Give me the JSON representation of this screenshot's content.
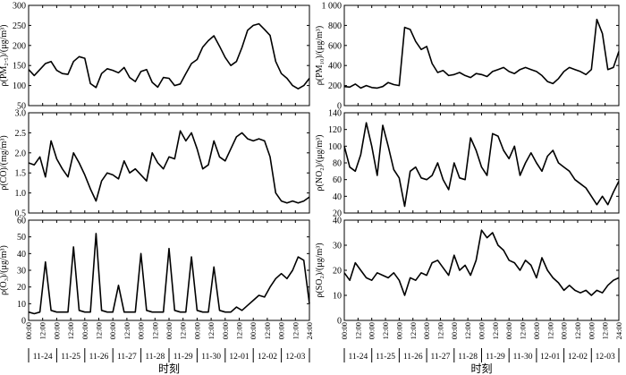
{
  "figure": {
    "xlabel_left": "时刻",
    "xlabel_right": "时刻",
    "time_ticks": [
      "00:00",
      "12:00",
      "00:00",
      "12:00",
      "00:00",
      "12:00",
      "00:00",
      "12:00",
      "00:00",
      "12:00",
      "00:00",
      "12:00",
      "00:00",
      "12:00",
      "00:00",
      "12:00",
      "00:00",
      "12:00",
      "00:00",
      "12:00",
      "24:00"
    ],
    "dates": [
      "11-24",
      "11-25",
      "11-26",
      "11-27",
      "11-28",
      "11-29",
      "11-30",
      "12-01",
      "12-02",
      "12-03"
    ]
  },
  "chart_data": [
    {
      "type": "line",
      "key": "pm25",
      "ylabel": "ρ(PM₂.₅)/(μg/m³)",
      "ylim": [
        50,
        300
      ],
      "yticks": [
        "50",
        "100",
        "150",
        "200",
        "250",
        "300"
      ],
      "x": [
        0,
        0.2,
        0.4,
        0.6,
        0.8,
        1.0,
        1.2,
        1.4,
        1.6,
        1.8,
        2.0,
        2.2,
        2.4,
        2.6,
        2.8,
        3.0,
        3.2,
        3.4,
        3.6,
        3.8,
        4.0,
        4.2,
        4.4,
        4.6,
        4.8,
        5.0,
        5.2,
        5.4,
        5.6,
        5.8,
        6.0,
        6.2,
        6.4,
        6.6,
        6.8,
        7.0,
        7.2,
        7.4,
        7.6,
        7.8,
        8.0,
        8.2,
        8.4,
        8.6,
        8.8,
        9.0,
        9.2,
        9.4,
        9.6,
        9.8,
        10.0
      ],
      "values": [
        140,
        125,
        140,
        155,
        160,
        138,
        130,
        128,
        160,
        172,
        168,
        105,
        95,
        130,
        142,
        138,
        132,
        145,
        120,
        110,
        135,
        140,
        108,
        96,
        120,
        118,
        100,
        104,
        130,
        155,
        165,
        196,
        212,
        224,
        198,
        170,
        150,
        160,
        195,
        238,
        250,
        254,
        240,
        225,
        160,
        130,
        118,
        100,
        92,
        100,
        118
      ]
    },
    {
      "type": "line",
      "key": "pm10",
      "ylabel": "ρ(PM₁₀)/(μg/m³)",
      "ylim": [
        0,
        1000
      ],
      "yticks": [
        "0",
        "200",
        "400",
        "600",
        "800",
        "1 000"
      ],
      "x": [
        0,
        0.2,
        0.4,
        0.6,
        0.8,
        1.0,
        1.2,
        1.4,
        1.6,
        1.8,
        2.0,
        2.2,
        2.4,
        2.6,
        2.8,
        3.0,
        3.2,
        3.4,
        3.6,
        3.8,
        4.0,
        4.2,
        4.4,
        4.6,
        4.8,
        5.0,
        5.2,
        5.4,
        5.6,
        5.8,
        6.0,
        6.2,
        6.4,
        6.6,
        6.8,
        7.0,
        7.2,
        7.4,
        7.6,
        7.8,
        8.0,
        8.2,
        8.4,
        8.6,
        8.8,
        9.0,
        9.2,
        9.4,
        9.6,
        9.8,
        10.0
      ],
      "values": [
        190,
        185,
        215,
        175,
        200,
        180,
        175,
        190,
        230,
        210,
        200,
        780,
        760,
        640,
        560,
        590,
        420,
        330,
        350,
        300,
        310,
        330,
        300,
        280,
        320,
        310,
        290,
        340,
        360,
        380,
        340,
        320,
        360,
        380,
        360,
        340,
        300,
        240,
        220,
        270,
        340,
        380,
        360,
        340,
        310,
        360,
        860,
        720,
        360,
        380,
        540
      ]
    },
    {
      "type": "line",
      "key": "co",
      "ylabel": "ρ(CO)/(mg/m³)",
      "ylim": [
        0.5,
        3.0
      ],
      "yticks": [
        "0.5",
        "1.0",
        "1.5",
        "2.0",
        "2.5",
        "3.0"
      ],
      "x": [
        0,
        0.2,
        0.4,
        0.6,
        0.8,
        1.0,
        1.2,
        1.4,
        1.6,
        1.8,
        2.0,
        2.2,
        2.4,
        2.6,
        2.8,
        3.0,
        3.2,
        3.4,
        3.6,
        3.8,
        4.0,
        4.2,
        4.4,
        4.6,
        4.8,
        5.0,
        5.2,
        5.4,
        5.6,
        5.8,
        6.0,
        6.2,
        6.4,
        6.6,
        6.8,
        7.0,
        7.2,
        7.4,
        7.6,
        7.8,
        8.0,
        8.2,
        8.4,
        8.6,
        8.8,
        9.0,
        9.2,
        9.4,
        9.6,
        9.8,
        10.0
      ],
      "values": [
        1.75,
        1.7,
        1.9,
        1.4,
        2.3,
        1.85,
        1.6,
        1.4,
        2.0,
        1.75,
        1.45,
        1.1,
        0.8,
        1.3,
        1.5,
        1.45,
        1.35,
        1.8,
        1.5,
        1.6,
        1.45,
        1.3,
        2.0,
        1.75,
        1.6,
        1.9,
        1.85,
        2.55,
        2.3,
        2.5,
        2.1,
        1.6,
        1.7,
        2.3,
        1.9,
        1.8,
        2.1,
        2.4,
        2.5,
        2.35,
        2.3,
        2.35,
        2.3,
        1.9,
        1.0,
        0.8,
        0.75,
        0.8,
        0.75,
        0.8,
        0.9
      ]
    },
    {
      "type": "line",
      "key": "no2",
      "ylabel": "ρ(NO₂)/(μg/m³)",
      "ylim": [
        20,
        140
      ],
      "yticks": [
        "20",
        "40",
        "60",
        "80",
        "100",
        "120",
        "140"
      ],
      "x": [
        0,
        0.2,
        0.4,
        0.6,
        0.8,
        1.0,
        1.2,
        1.4,
        1.6,
        1.8,
        2.0,
        2.2,
        2.4,
        2.6,
        2.8,
        3.0,
        3.2,
        3.4,
        3.6,
        3.8,
        4.0,
        4.2,
        4.4,
        4.6,
        4.8,
        5.0,
        5.2,
        5.4,
        5.6,
        5.8,
        6.0,
        6.2,
        6.4,
        6.6,
        6.8,
        7.0,
        7.2,
        7.4,
        7.6,
        7.8,
        8.0,
        8.2,
        8.4,
        8.6,
        8.8,
        9.0,
        9.2,
        9.4,
        9.6,
        9.8,
        10.0
      ],
      "values": [
        100,
        75,
        70,
        90,
        128,
        100,
        65,
        125,
        100,
        72,
        62,
        28,
        70,
        75,
        62,
        60,
        65,
        80,
        60,
        48,
        80,
        62,
        60,
        110,
        95,
        75,
        65,
        115,
        112,
        95,
        85,
        100,
        65,
        80,
        92,
        80,
        70,
        88,
        95,
        80,
        75,
        70,
        60,
        55,
        50,
        40,
        30,
        40,
        30,
        45,
        58
      ]
    },
    {
      "type": "line",
      "key": "o3",
      "ylabel": "ρ(O₃)/(μg/m³)",
      "ylim": [
        0,
        60
      ],
      "yticks": [
        "0",
        "10",
        "20",
        "30",
        "40",
        "50",
        "60"
      ],
      "x": [
        0,
        0.2,
        0.4,
        0.6,
        0.8,
        1.0,
        1.2,
        1.4,
        1.6,
        1.8,
        2.0,
        2.2,
        2.4,
        2.6,
        2.8,
        3.0,
        3.2,
        3.4,
        3.6,
        3.8,
        4.0,
        4.2,
        4.4,
        4.6,
        4.8,
        5.0,
        5.2,
        5.4,
        5.6,
        5.8,
        6.0,
        6.2,
        6.4,
        6.6,
        6.8,
        7.0,
        7.2,
        7.4,
        7.6,
        7.8,
        8.0,
        8.2,
        8.4,
        8.6,
        8.8,
        9.0,
        9.2,
        9.4,
        9.6,
        9.8,
        10.0
      ],
      "values": [
        5,
        4,
        5,
        35,
        6,
        5,
        5,
        5,
        44,
        6,
        5,
        5,
        52,
        6,
        5,
        5,
        21,
        5,
        5,
        5,
        40,
        6,
        5,
        5,
        5,
        43,
        6,
        5,
        5,
        38,
        6,
        5,
        5,
        32,
        6,
        5,
        5,
        8,
        6,
        9,
        12,
        15,
        14,
        20,
        25,
        28,
        25,
        30,
        38,
        36,
        10
      ]
    },
    {
      "type": "line",
      "key": "so2",
      "ylabel": "ρ(SO₂)/(μg/m³)",
      "ylim": [
        0,
        40
      ],
      "yticks": [
        "0",
        "10",
        "20",
        "30",
        "40"
      ],
      "x": [
        0,
        0.2,
        0.4,
        0.6,
        0.8,
        1.0,
        1.2,
        1.4,
        1.6,
        1.8,
        2.0,
        2.2,
        2.4,
        2.6,
        2.8,
        3.0,
        3.2,
        3.4,
        3.6,
        3.8,
        4.0,
        4.2,
        4.4,
        4.6,
        4.8,
        5.0,
        5.2,
        5.4,
        5.6,
        5.8,
        6.0,
        6.2,
        6.4,
        6.6,
        6.8,
        7.0,
        7.2,
        7.4,
        7.6,
        7.8,
        8.0,
        8.2,
        8.4,
        8.6,
        8.8,
        9.0,
        9.2,
        9.4,
        9.6,
        9.8,
        10.0
      ],
      "values": [
        19,
        16,
        23,
        20,
        17,
        16,
        19,
        18,
        17,
        19,
        16,
        10,
        17,
        16,
        19,
        18,
        23,
        24,
        21,
        18,
        26,
        20,
        22,
        18,
        24,
        36,
        33,
        35,
        30,
        28,
        24,
        23,
        20,
        24,
        22,
        17,
        25,
        20,
        17,
        15,
        12,
        14,
        12,
        11,
        12,
        10,
        12,
        11,
        14,
        16,
        17
      ]
    }
  ]
}
